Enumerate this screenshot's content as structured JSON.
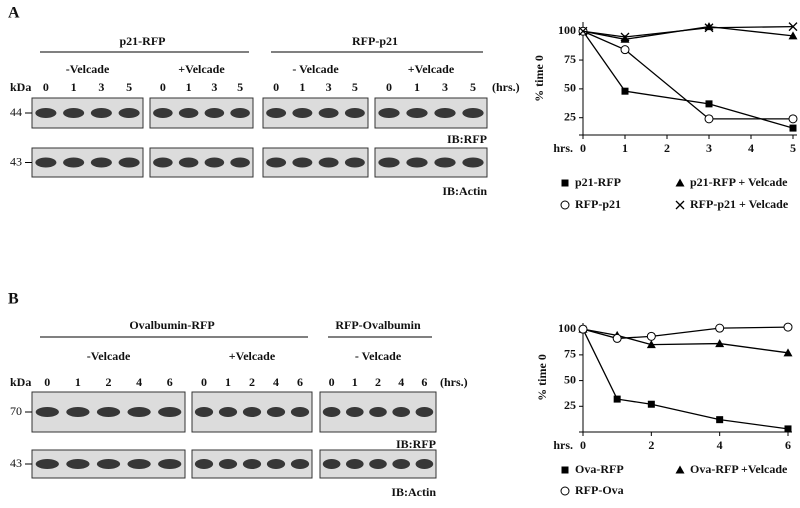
{
  "figure": {
    "panels": [
      {
        "letter": "A",
        "kda": "kDa",
        "hrs": "(hrs.)",
        "groups": [
          {
            "name": "p21-RFP",
            "subgroups": [
              {
                "name": "-Velcade",
                "lanes": [
                  "0",
                  "1",
                  "3",
                  "5"
                ]
              },
              {
                "name": "+Velcade",
                "lanes": [
                  "0",
                  "1",
                  "3",
                  "5"
                ]
              }
            ]
          },
          {
            "name": "RFP-p21",
            "subgroups": [
              {
                "name": "- Velcade",
                "lanes": [
                  "0",
                  "1",
                  "3",
                  "5"
                ]
              },
              {
                "name": "+Velcade",
                "lanes": [
                  "0",
                  "1",
                  "3",
                  "5"
                ]
              }
            ]
          }
        ],
        "rows": [
          {
            "marker": "44",
            "label": "IB:RFP"
          },
          {
            "marker": "43",
            "label": "IB:Actin"
          }
        ]
      },
      {
        "letter": "B",
        "kda": "kDa",
        "hrs": "(hrs.)",
        "groups": [
          {
            "name": "Ovalbumin-RFP",
            "subgroups": [
              {
                "name": "-Velcade",
                "lanes": [
                  "0",
                  "1",
                  "2",
                  "4",
                  "6"
                ]
              },
              {
                "name": "+Velcade",
                "lanes": [
                  "0",
                  "1",
                  "2",
                  "4",
                  "6"
                ]
              }
            ]
          },
          {
            "name": "RFP-Ovalbumin",
            "subgroups": [
              {
                "name": "- Velcade",
                "lanes": [
                  "0",
                  "1",
                  "2",
                  "4",
                  "6"
                ]
              }
            ]
          }
        ],
        "rows": [
          {
            "marker": "70",
            "label": "IB:RFP"
          },
          {
            "marker": "43",
            "label": "IB:Actin"
          }
        ]
      }
    ]
  },
  "chart_data": [
    {
      "type": "line",
      "xlabel": "hrs.",
      "ylabel": "% time 0",
      "x": [
        0,
        1,
        3,
        5
      ],
      "xlim": [
        0,
        5
      ],
      "xticks": [
        0,
        1,
        2,
        3,
        4,
        5
      ],
      "ylim": [
        10,
        108
      ],
      "yticks": [
        25,
        50,
        75,
        100
      ],
      "series": [
        {
          "name": "p21-RFP",
          "color": "#000000",
          "marker": "square",
          "values": [
            100,
            48,
            37,
            16
          ]
        },
        {
          "name": "p21-RFP + Velcade",
          "color": "#000000",
          "marker": "triangle",
          "values": [
            100,
            93,
            104,
            96
          ]
        },
        {
          "name": "RFP-p21",
          "color": "#000000",
          "marker": "circle",
          "values": [
            100,
            84,
            24,
            24
          ]
        },
        {
          "name": "RFP-p21 + Velcade",
          "color": "#000000",
          "marker": "x",
          "values": [
            100,
            95,
            103,
            104
          ]
        }
      ]
    },
    {
      "type": "line",
      "xlabel": "hrs.",
      "ylabel": "% time 0",
      "x": [
        0,
        1,
        2,
        4,
        6
      ],
      "xlim": [
        0,
        6
      ],
      "xticks": [
        0,
        2,
        4,
        6
      ],
      "ylim": [
        0,
        106
      ],
      "yticks": [
        25,
        50,
        75,
        100
      ],
      "series": [
        {
          "name": "Ova-RFP",
          "color": "#000000",
          "marker": "square",
          "values": [
            100,
            32,
            27,
            12,
            3
          ]
        },
        {
          "name": "Ova-RFP +Velcade",
          "color": "#000000",
          "marker": "triangle",
          "values": [
            100,
            94,
            85,
            86,
            77
          ]
        },
        {
          "name": "RFP-Ova",
          "color": "#000000",
          "marker": "circle",
          "values": [
            100,
            91,
            93,
            101,
            102
          ]
        }
      ]
    }
  ]
}
